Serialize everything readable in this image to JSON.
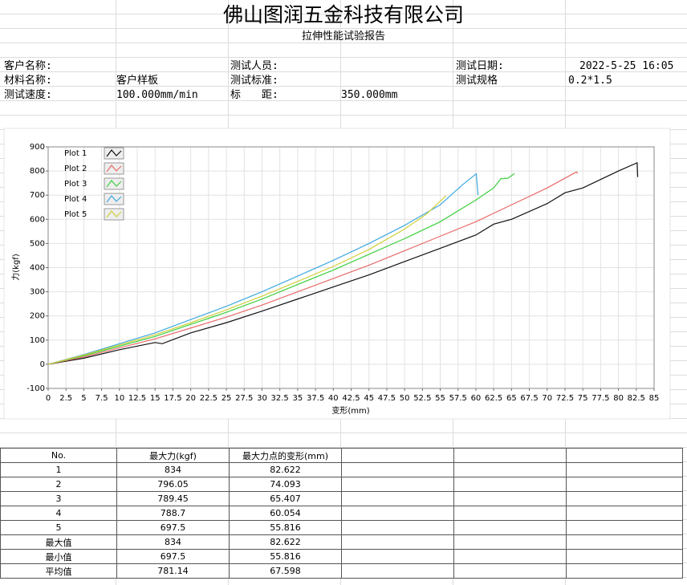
{
  "header": {
    "title": "佛山图润五金科技有限公司",
    "subtitle": "拉伸性能试验报告"
  },
  "info": [
    {
      "label": "客户名称:"
    },
    {
      "label": "测试人员:"
    },
    {
      "label": "测试日期:",
      "value": "2022-5-25 16:05"
    },
    {
      "label": "材料名称:",
      "value": "客户样板"
    },
    {
      "label": "测试标准:"
    },
    {
      "label": "测试规格",
      "value": "0.2*1.5"
    },
    {
      "label": "测试速度:",
      "value": "100.000mm/min"
    },
    {
      "label": "标　　距:",
      "value": "350.000mm"
    }
  ],
  "chart_data": {
    "type": "line",
    "ylabel": "力(kgf)",
    "xlabel": "变形(mm)",
    "xlim": [
      0,
      85
    ],
    "ylim": [
      -100,
      900
    ],
    "xticks": [
      0,
      2.5,
      5,
      7.5,
      10,
      12.5,
      15,
      17.5,
      20,
      22.5,
      25,
      27.5,
      30,
      32.5,
      35,
      37.5,
      40,
      42.5,
      45,
      47.5,
      50,
      52.5,
      55,
      57.5,
      60,
      62.5,
      65,
      67.5,
      70,
      72.5,
      75,
      77.5,
      80,
      82.5,
      85
    ],
    "yticks": [
      -100,
      0,
      100,
      200,
      300,
      400,
      500,
      600,
      700,
      800,
      900
    ],
    "grid": true,
    "legend": "upper left",
    "series": [
      {
        "name": "Plot 1",
        "color": "#111111",
        "x": [
          0,
          5,
          10,
          15,
          16,
          20,
          25,
          30,
          35,
          40,
          45,
          50,
          55,
          60,
          62.5,
          65,
          70,
          72.5,
          75,
          80,
          82.622,
          82.7
        ],
        "values": [
          0,
          25,
          60,
          90,
          85,
          130,
          172,
          220,
          270,
          320,
          370,
          425,
          480,
          535,
          580,
          600,
          665,
          710,
          730,
          800,
          834,
          775
        ]
      },
      {
        "name": "Plot 2",
        "color": "#e86a6a",
        "x": [
          0,
          5,
          10,
          15,
          20,
          25,
          30,
          35,
          40,
          45,
          50,
          55,
          60,
          65,
          70,
          74.093,
          74.3
        ],
        "values": [
          0,
          30,
          68,
          105,
          150,
          195,
          245,
          300,
          355,
          410,
          470,
          530,
          590,
          660,
          730,
          796.05,
          790
        ]
      },
      {
        "name": "Plot 3",
        "color": "#3fcf3f",
        "x": [
          0,
          5,
          10,
          15,
          20,
          25,
          30,
          35,
          40,
          45,
          50,
          55,
          60,
          62.5,
          63.5,
          64.5,
          65.407
        ],
        "values": [
          0,
          35,
          75,
          115,
          165,
          215,
          270,
          330,
          390,
          455,
          520,
          590,
          680,
          730,
          768,
          770,
          789.45
        ]
      },
      {
        "name": "Plot 4",
        "color": "#3fa9e0",
        "x": [
          0,
          5,
          10,
          15,
          20,
          25,
          30,
          35,
          40,
          45,
          50,
          55,
          58,
          60.054,
          60.3
        ],
        "values": [
          0,
          40,
          85,
          130,
          185,
          240,
          300,
          365,
          430,
          500,
          575,
          660,
          740,
          788.7,
          700
        ]
      },
      {
        "name": "Plot 5",
        "color": "#cfcf3a",
        "x": [
          0,
          5,
          10,
          15,
          20,
          25,
          30,
          35,
          40,
          45,
          50,
          53,
          55.816
        ],
        "values": [
          0,
          38,
          80,
          122,
          172,
          225,
          282,
          343,
          405,
          475,
          560,
          620,
          697.5
        ]
      }
    ]
  },
  "table": {
    "header": [
      "No.",
      "最大力(kgf)",
      "最大力点的变形(mm)"
    ],
    "rows": [
      [
        "1",
        834,
        82.622
      ],
      [
        "2",
        796.05,
        74.093
      ],
      [
        "3",
        789.45,
        65.407
      ],
      [
        "4",
        788.7,
        60.054
      ],
      [
        "5",
        697.5,
        55.816
      ],
      [
        "最大值",
        834,
        82.622
      ],
      [
        "最小值",
        697.5,
        55.816
      ],
      [
        "平均值",
        781.14,
        67.598
      ]
    ]
  }
}
